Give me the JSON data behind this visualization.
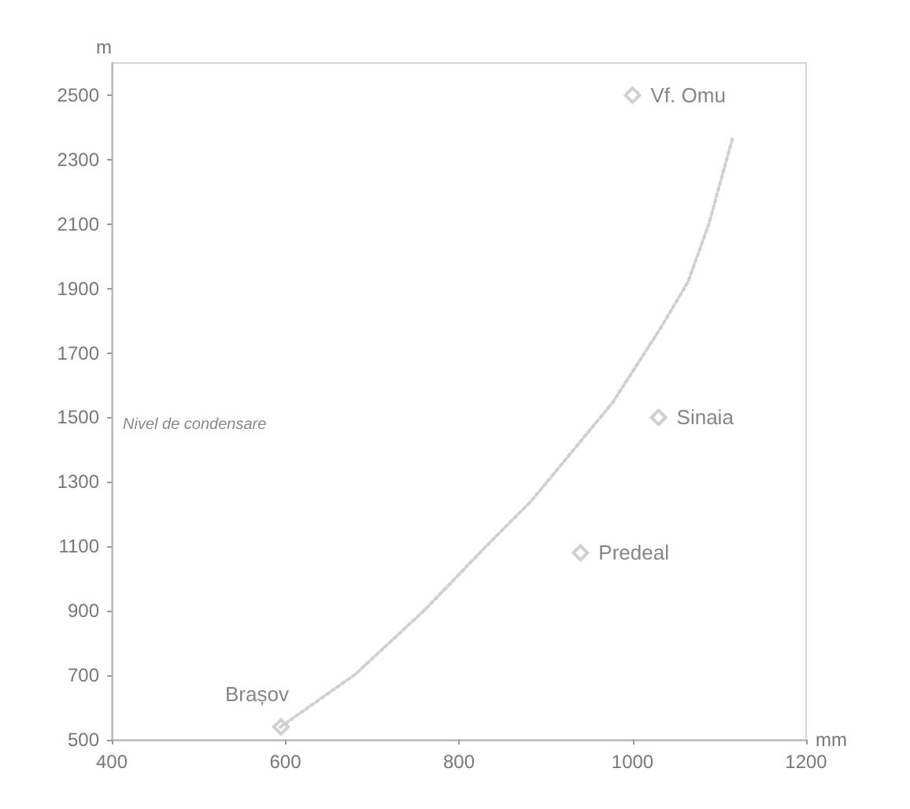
{
  "chart_data": {
    "type": "scatter",
    "xlabel": "mm",
    "ylabel": "m",
    "xlim": [
      400,
      1200
    ],
    "xticks": [
      400,
      600,
      800,
      1000,
      1200
    ],
    "ylim": [
      500,
      2600
    ],
    "yticks": [
      500,
      700,
      900,
      1100,
      1300,
      1500,
      1700,
      1900,
      2100,
      2300,
      2500
    ],
    "grid": false,
    "marker": "diamond",
    "annotations": [
      "Nivel de condensare"
    ],
    "series": [
      {
        "color": "#c4c4c4",
        "x": [
          595,
          940,
          1030,
          1000
        ],
        "values": [
          540,
          1080,
          1500,
          2500
        ],
        "value_labels": [
          "Brașov",
          "Predeal",
          "Sinaia",
          "Vf. Omu"
        ]
      },
      {
        "type": "line",
        "color": "#cfcfcf",
        "line_style": "dotted",
        "marker": "none",
        "x": [
          594,
          681,
          761,
          836,
          883,
          977,
          1033,
          1064,
          1088,
          1115
        ],
        "values": [
          539,
          704,
          904,
          1113,
          1240,
          1546,
          1780,
          1921,
          2101,
          2364
        ]
      }
    ]
  }
}
